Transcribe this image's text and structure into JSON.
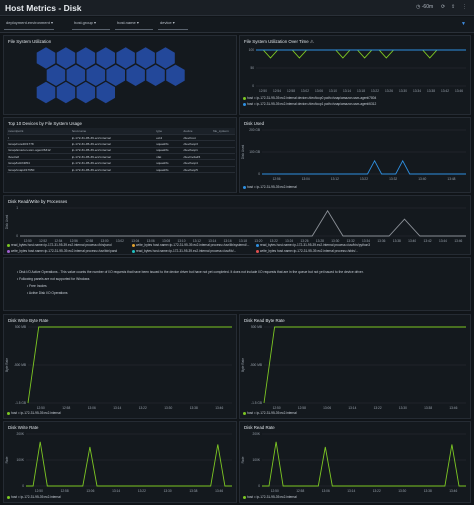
{
  "header": {
    "title": "Host Metrics - Disk",
    "time_range": "-60m",
    "icons": [
      "clock-icon",
      "refresh-icon",
      "share-icon",
      "more-icon",
      "filter-icon"
    ]
  },
  "filters": [
    {
      "label": "deployment.environment"
    },
    {
      "label": "host.group"
    },
    {
      "label": "host.name"
    },
    {
      "label": "device"
    }
  ],
  "panels": {
    "fs_util": {
      "title": "File System Utilization"
    },
    "fs_util_time": {
      "title": "File System Utilization Over Time",
      "legend": [
        "host = ip-172-31-95-39.ec2.internal device=/dev/loop0 path=/snap/amazon-ssm-agent/7804",
        "host = ip-172-31-95-39.ec2.internal device=/dev/loop1 path=/snap/amazon-ssm-agent/6312"
      ]
    },
    "top10": {
      "title": "Top 10 Devices by File System Usage",
      "columns": [
        "mountpoint",
        "host.name",
        "type",
        "device",
        "file_system"
      ],
      "rows": [
        [
          "/",
          "ip-172-31-95-39.ec2.internal",
          "ext4",
          "/dev/root",
          ""
        ],
        [
          "/snap/core20/1778",
          "ip-172-31-95-39.ec2.internal",
          "squashfs",
          "/dev/loop3",
          ""
        ],
        [
          "/snap/amazon-ssm-agent/6312",
          "ip-172-31-95-39.ec2.internal",
          "squashfs",
          "/dev/loop1",
          ""
        ],
        [
          "/boot/efi",
          "ip-172-31-95-39.ec2.internal",
          "vfat",
          "/dev/xvda15",
          ""
        ],
        [
          "/snap/lxd/24054",
          "ip-172-31-95-39.ec2.internal",
          "squashfs",
          "/dev/loop4",
          ""
        ],
        [
          "/snap/snapd/17950",
          "ip-172-31-95-39.ec2.internal",
          "squashfs",
          "/dev/loop5",
          ""
        ]
      ]
    },
    "disk_used": {
      "title": "Disk Used",
      "legend": [
        "host = ip-172-31-95-39.ec2.internal"
      ]
    },
    "disk_rw": {
      "title": "Disk Read/Write by Processes",
      "legend": [
        "read_bytes host.name=ip-172-31-95-39.ec2.internal process=/bin/pand",
        "write_bytes host.name=ip-172-31-95-39.ec2.internal process=/usr/lib/systemd/...",
        "read_bytes host.name=ip-172-31-95-39.ec2.internal process=/usr/bin/python3",
        "write_bytes host.name=ip-172-31-95-39.ec2.internal process=/usr/bin/pand",
        "read_bytes host.name=ip-172-31-95-39.ec2.internal process=/usr/lib/...",
        "write_bytes host.name=ip-172-31-95-39.ec2.internal process=/sbin/..."
      ]
    },
    "notes": {
      "line1": "Disk I/O Active Operations - This value counts the number of I/O requests that have been issued to the device driver but have not yet completed. It does not include I/O requests that are in the queue but not yet issued to the device driver.",
      "line2": "Following panels are not supported for Windows",
      "items": [
        "Free Inodes",
        "Active Disk I/O Operations"
      ]
    },
    "disk_write_byte_rate": {
      "title": "Disk Write Byte Rate",
      "legend": [
        "host = ip-172-31-95-39.ec2.internal"
      ]
    },
    "disk_read_byte_rate": {
      "title": "Disk Read Byte Rate",
      "legend": [
        "host = ip-172-31-95-39.ec2.internal"
      ]
    },
    "disk_write_rate": {
      "title": "Disk Write Rate",
      "legend": [
        "host = ip-172-31-95-39.ec2.internal"
      ]
    },
    "disk_read_rate": {
      "title": "Disk Read Rate",
      "legend": [
        "host = ip-172-31-95-39.ec2.internal"
      ]
    }
  },
  "chart_data": [
    {
      "type": "line",
      "title": "File System Utilization Over Time",
      "ylabel": "",
      "y_ticks": [
        "0",
        "50",
        "100"
      ],
      "x_ticks": [
        "12:50",
        "12:54",
        "12:58",
        "13:02",
        "13:06",
        "13:10",
        "13:14",
        "13:18",
        "13:22",
        "13:26",
        "13:30",
        "13:34",
        "13:38",
        "13:42",
        "13:46"
      ],
      "ylim": [
        0,
        100
      ],
      "series": [
        {
          "name": "host = ip-172-31-95-39.ec2.internal device=/dev/loop0 path=/snap/amazon-ssm-agent/7804",
          "color": "#7cc623",
          "values": [
            100,
            100,
            78,
            100,
            100,
            100,
            78,
            100,
            100,
            100,
            100,
            100,
            78,
            100,
            100,
            78,
            100,
            100,
            78,
            100,
            100,
            100,
            100,
            100,
            78,
            100,
            100,
            100,
            100,
            100
          ]
        },
        {
          "name": "host = ip-172-31-95-39.ec2.internal device=/dev/loop1 path=/snap/amazon-ssm-agent/6312",
          "color": "#2e8fe0",
          "values": [
            100,
            100,
            100,
            100,
            100,
            100,
            100,
            100,
            100,
            100,
            100,
            100,
            100,
            100,
            100,
            100,
            100,
            100,
            100,
            100,
            100,
            100,
            100,
            100,
            100,
            100,
            100,
            100,
            100,
            100
          ]
        }
      ]
    },
    {
      "type": "line",
      "title": "Disk Used",
      "ylabel": "Disk Used",
      "y_ticks": [
        "0",
        "100 GB",
        "200 GB"
      ],
      "x_ticks": [
        "12:56",
        "13:04",
        "13:12",
        "13:22",
        "13:32",
        "13:40",
        "13:48"
      ],
      "ylim": [
        0,
        200
      ],
      "series": [
        {
          "name": "host = ip-172-31-95-39.ec2.internal",
          "color": "#2e8fe0",
          "values": [
            0,
            0,
            0,
            0,
            0,
            0,
            0,
            0,
            0,
            0,
            0,
            0,
            0,
            0,
            0,
            0,
            60,
            0,
            0,
            0,
            60,
            0,
            0,
            0,
            0,
            0,
            0,
            0,
            0,
            0
          ]
        }
      ]
    },
    {
      "type": "line",
      "title": "Disk Read/Write by Processes",
      "ylabel": "Disk Used",
      "y_ticks": [
        "0",
        "1"
      ],
      "x_ticks": [
        "12:50",
        "12:52",
        "12:54",
        "12:56",
        "12:58",
        "13:00",
        "13:02",
        "13:04",
        "13:06",
        "13:08",
        "13:10",
        "13:12",
        "13:14",
        "13:16",
        "13:18",
        "13:20",
        "13:22",
        "13:24",
        "13:26",
        "13:28",
        "13:30",
        "13:32",
        "13:34",
        "13:36",
        "13:38",
        "13:40",
        "13:42",
        "13:44",
        "13:46"
      ],
      "ylim": [
        0,
        1
      ],
      "series": [
        {
          "name": "write_bytes",
          "color": "#8a8f96",
          "values": [
            0,
            0,
            0,
            0,
            0,
            0,
            0,
            0,
            0,
            0,
            0,
            0,
            0,
            0,
            0,
            0,
            0,
            0,
            0,
            0,
            0.9,
            0,
            0,
            0,
            0,
            0.6,
            0,
            0,
            0,
            0
          ]
        }
      ]
    },
    {
      "type": "line",
      "title": "Disk Write Byte Rate",
      "ylabel": "Byte Rate",
      "y_ticks": [
        "-1.5 GB",
        "-500 MB",
        "500 MB"
      ],
      "x_ticks": [
        "12:50",
        "12:58",
        "13:06",
        "13:14",
        "13:22",
        "13:30",
        "13:38",
        "13:46"
      ],
      "ylim": [
        -1.5,
        0.5
      ],
      "series": [
        {
          "name": "host = ip-172-31-95-39.ec2.internal",
          "color": "#7cc623",
          "values": [
            -1.5,
            0.5,
            0.5,
            0.5,
            0.5,
            0.5,
            0.5,
            0.5,
            0.5,
            0.5,
            0.5,
            0.5,
            0.5,
            0.5,
            0.5,
            0.5,
            0.5,
            0.5,
            0.5,
            0.5
          ]
        }
      ]
    },
    {
      "type": "line",
      "title": "Disk Read Byte Rate",
      "ylabel": "Byte Rate",
      "y_ticks": [
        "-1.5 GB",
        "-500 MB",
        "500 MB"
      ],
      "x_ticks": [
        "12:50",
        "12:58",
        "13:06",
        "13:14",
        "13:22",
        "13:30",
        "13:38",
        "13:46"
      ],
      "ylim": [
        -1.5,
        0.5
      ],
      "series": [
        {
          "name": "host = ip-172-31-95-39.ec2.internal",
          "color": "#7cc623",
          "values": [
            -1.5,
            0.5,
            0.5,
            0.5,
            0.5,
            0.5,
            0.5,
            0.5,
            0.5,
            0.5,
            0.5,
            0.5,
            0.5,
            0.5,
            0.5,
            0.5,
            0.5,
            0.5,
            0.5,
            0.5
          ]
        }
      ]
    },
    {
      "type": "line",
      "title": "Disk Write Rate",
      "ylabel": "Rate",
      "y_ticks": [
        "0",
        "100K",
        "200K"
      ],
      "x_ticks": [
        "12:50",
        "12:58",
        "13:06",
        "13:14",
        "13:22",
        "13:30",
        "13:38",
        "13:46"
      ],
      "ylim": [
        0,
        200
      ],
      "series": [
        {
          "name": "host = ip-172-31-95-39.ec2.internal",
          "color": "#7cc623",
          "values": [
            0,
            0,
            170,
            0,
            0,
            0,
            0,
            0,
            0,
            150,
            0,
            0,
            0,
            0,
            0,
            0,
            0,
            0,
            0,
            0,
            0,
            0,
            0,
            0,
            0,
            0,
            0,
            160,
            0,
            0
          ]
        }
      ]
    },
    {
      "type": "line",
      "title": "Disk Read Rate",
      "ylabel": "Rate",
      "y_ticks": [
        "0",
        "100K",
        "200K"
      ],
      "x_ticks": [
        "12:50",
        "12:58",
        "13:06",
        "13:14",
        "13:22",
        "13:30",
        "13:38",
        "13:46"
      ],
      "ylim": [
        0,
        200
      ],
      "series": [
        {
          "name": "host = ip-172-31-95-39.ec2.internal",
          "color": "#7cc623",
          "values": [
            0,
            0,
            170,
            0,
            0,
            0,
            0,
            0,
            0,
            150,
            0,
            0,
            0,
            0,
            0,
            0,
            0,
            0,
            0,
            0,
            0,
            0,
            0,
            0,
            0,
            0,
            0,
            160,
            0,
            0
          ]
        }
      ]
    }
  ]
}
